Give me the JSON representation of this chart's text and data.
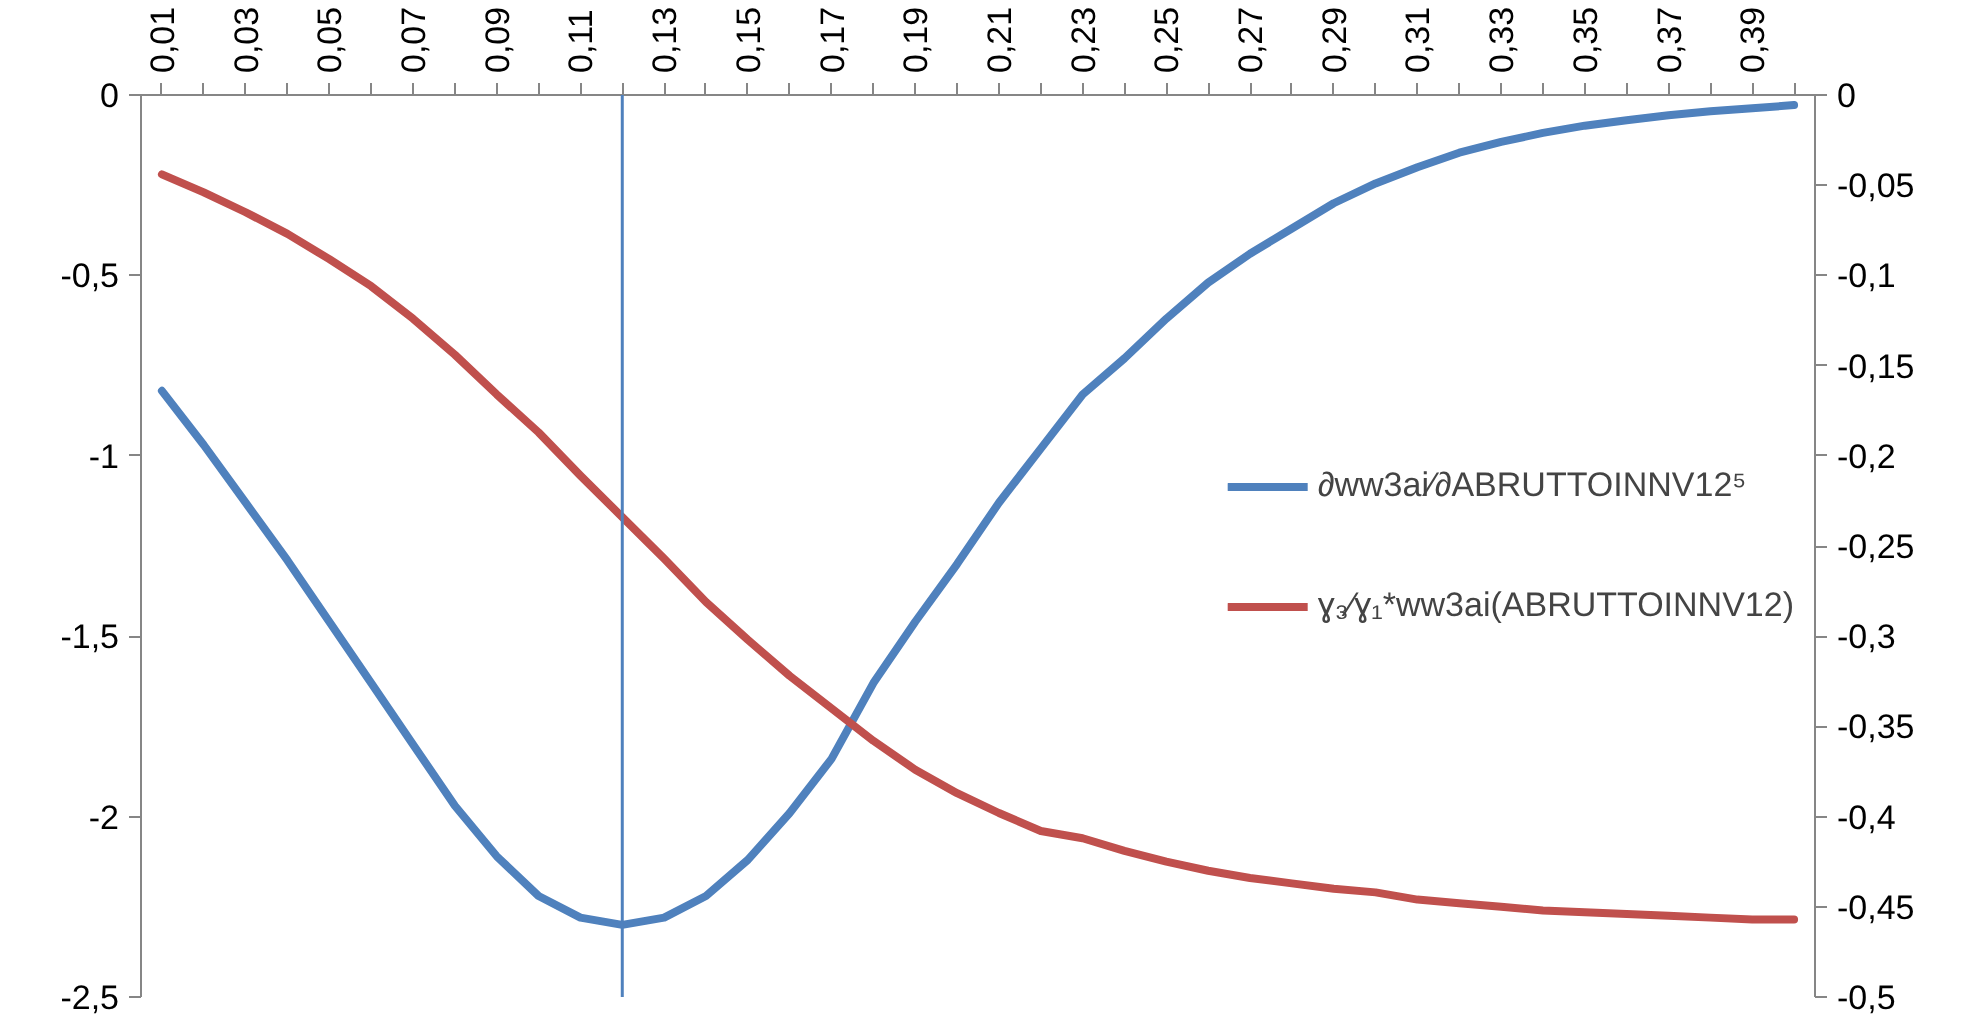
{
  "chart_data": {
    "type": "line",
    "x": [
      0.01,
      0.02,
      0.03,
      0.04,
      0.05,
      0.06,
      0.07,
      0.08,
      0.09,
      0.1,
      0.11,
      0.12,
      0.13,
      0.14,
      0.15,
      0.16,
      0.17,
      0.18,
      0.19,
      0.2,
      0.21,
      0.22,
      0.23,
      0.24,
      0.25,
      0.26,
      0.27,
      0.28,
      0.29,
      0.3,
      0.31,
      0.32,
      0.33,
      0.34,
      0.35,
      0.36,
      0.37,
      0.38,
      0.39,
      0.4
    ],
    "series": [
      {
        "name": "∂ww3ai⁄∂ABRUTTOINNV12⁵",
        "color": "#4f81bd",
        "values": [
          -0.82,
          -0.97,
          -1.13,
          -1.29,
          -1.46,
          -1.63,
          -1.8,
          -1.97,
          -2.11,
          -2.22,
          -2.28,
          -2.3,
          -2.28,
          -2.22,
          -2.12,
          -1.99,
          -1.84,
          -1.63,
          -1.46,
          -1.3,
          -1.13,
          -0.98,
          -0.83,
          -0.73,
          -0.62,
          -0.52,
          -0.44,
          -0.37,
          -0.3,
          -0.245,
          -0.2,
          -0.16,
          -0.13,
          -0.105,
          -0.085,
          -0.07,
          -0.056,
          -0.045,
          -0.037,
          -0.028
        ]
      },
      {
        "name": "ɣ₃⁄ɣ₁*ww3ai(ABRUTTOINNV12)",
        "color": "#c0504d",
        "axis": "y2",
        "values": [
          -0.044,
          -0.054,
          -0.065,
          -0.077,
          -0.091,
          -0.106,
          -0.124,
          -0.144,
          -0.166,
          -0.187,
          -0.211,
          -0.234,
          -0.257,
          -0.281,
          -0.302,
          -0.322,
          -0.34,
          -0.358,
          -0.374,
          -0.387,
          -0.398,
          -0.408,
          -0.412,
          -0.419,
          -0.425,
          -0.43,
          -0.434,
          -0.437,
          -0.44,
          -0.442,
          -0.446,
          -0.448,
          -0.45,
          -0.452,
          -0.453,
          -0.454,
          -0.455,
          -0.456,
          -0.457,
          -0.457
        ]
      }
    ],
    "xlim": [
      0.005,
      0.405
    ],
    "xticks": [
      {
        "value": 0.01,
        "label": "0,01"
      },
      {
        "value": 0.02,
        "label": null
      },
      {
        "value": 0.03,
        "label": "0,03"
      },
      {
        "value": 0.04,
        "label": null
      },
      {
        "value": 0.05,
        "label": "0,05"
      },
      {
        "value": 0.06,
        "label": null
      },
      {
        "value": 0.07,
        "label": "0,07"
      },
      {
        "value": 0.08,
        "label": null
      },
      {
        "value": 0.09,
        "label": "0,09"
      },
      {
        "value": 0.1,
        "label": null
      },
      {
        "value": 0.11,
        "label": "0,11"
      },
      {
        "value": 0.12,
        "label": null
      },
      {
        "value": 0.13,
        "label": "0,13"
      },
      {
        "value": 0.14,
        "label": null
      },
      {
        "value": 0.15,
        "label": "0,15"
      },
      {
        "value": 0.16,
        "label": null
      },
      {
        "value": 0.17,
        "label": "0,17"
      },
      {
        "value": 0.18,
        "label": null
      },
      {
        "value": 0.19,
        "label": "0,19"
      },
      {
        "value": 0.2,
        "label": null
      },
      {
        "value": 0.21,
        "label": "0,21"
      },
      {
        "value": 0.22,
        "label": null
      },
      {
        "value": 0.23,
        "label": "0,23"
      },
      {
        "value": 0.24,
        "label": null
      },
      {
        "value": 0.25,
        "label": "0,25"
      },
      {
        "value": 0.26,
        "label": null
      },
      {
        "value": 0.27,
        "label": "0,27"
      },
      {
        "value": 0.28,
        "label": null
      },
      {
        "value": 0.29,
        "label": "0,29"
      },
      {
        "value": 0.3,
        "label": null
      },
      {
        "value": 0.31,
        "label": "0,31"
      },
      {
        "value": 0.32,
        "label": null
      },
      {
        "value": 0.33,
        "label": "0,33"
      },
      {
        "value": 0.34,
        "label": null
      },
      {
        "value": 0.35,
        "label": "0,35"
      },
      {
        "value": 0.36,
        "label": null
      },
      {
        "value": 0.37,
        "label": "0,37"
      },
      {
        "value": 0.38,
        "label": null
      },
      {
        "value": 0.39,
        "label": "0,39"
      },
      {
        "value": 0.4,
        "label": null
      }
    ],
    "ylim": [
      -2.5,
      0
    ],
    "yticks": [
      0,
      {
        "value": -0.5,
        "label": "-0,5"
      },
      -1,
      {
        "value": -1.5,
        "label": "-1,5"
      },
      -2,
      {
        "value": -2.5,
        "label": "-2,5"
      }
    ],
    "y2lim": [
      -0.5,
      0
    ],
    "y2ticks": [
      0,
      {
        "value": -0.05,
        "label": "-0,05"
      },
      {
        "value": -0.1,
        "label": "-0,1"
      },
      {
        "value": -0.15,
        "label": "-0,15"
      },
      {
        "value": -0.2,
        "label": "-0,2"
      },
      {
        "value": -0.25,
        "label": "-0,25"
      },
      {
        "value": -0.3,
        "label": "-0,3"
      },
      {
        "value": -0.35,
        "label": "-0,35"
      },
      {
        "value": -0.4,
        "label": "-0,4"
      },
      {
        "value": -0.45,
        "label": "-0,45"
      },
      {
        "value": -0.5,
        "label": "-0,5"
      }
    ],
    "ref_lines": [
      {
        "axis": "x",
        "value": 0.12,
        "color": "#4f81bd"
      }
    ],
    "grid": false,
    "legend": "right",
    "marker": "none",
    "line_style": "solid"
  }
}
